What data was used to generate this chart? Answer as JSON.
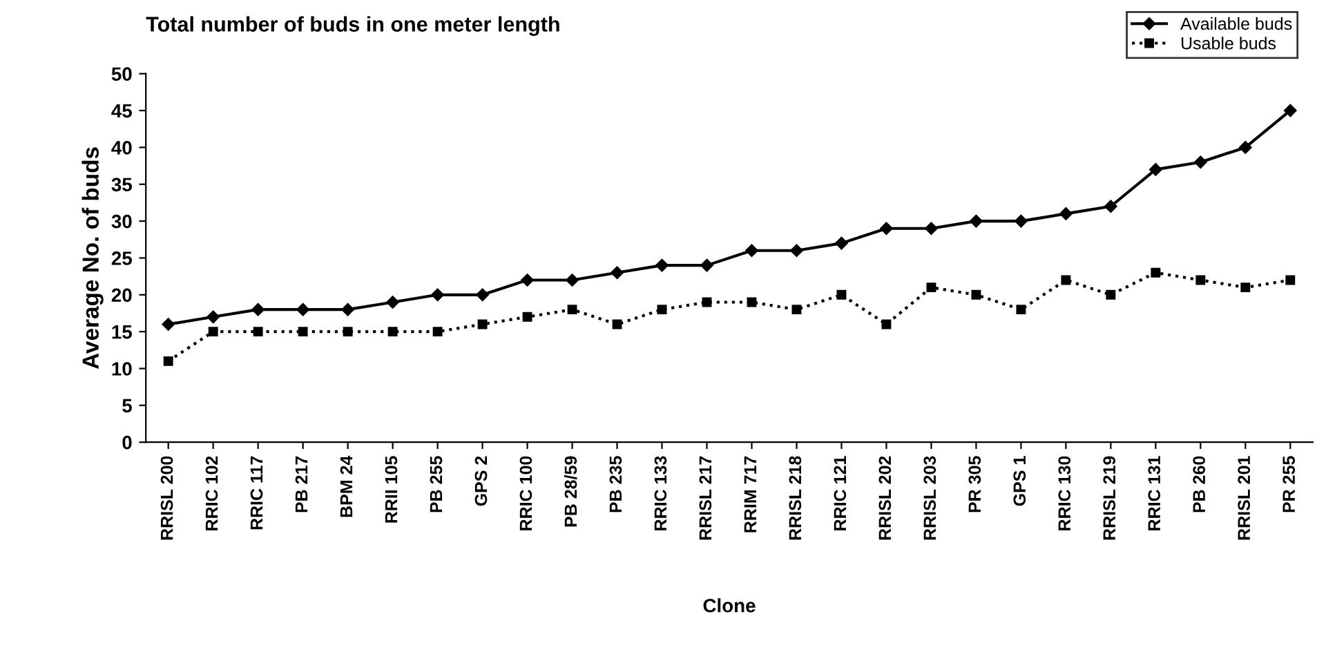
{
  "chart_data": {
    "type": "line",
    "title": "Total number of buds in one meter length",
    "xlabel": "Clone",
    "ylabel": "Average No. of buds",
    "categories": [
      "RRISL 200",
      "RRIC 102",
      "RRIC 117",
      "PB 217",
      "BPM 24",
      "RRII 105",
      "PB 255",
      "GPS 2",
      "RRIC 100",
      "PB 28/59",
      "PB 235",
      "RRIC 133",
      "RRISL 217",
      "RRIM 717",
      "RRISL 218",
      "RRIC 121",
      "RRISL 202",
      "RRISL 203",
      "PR 305",
      "GPS 1",
      "RRIC 130",
      "RRISL 219",
      "RRIC 131",
      "PB 260",
      "RRISL 201",
      "PR 255"
    ],
    "series": [
      {
        "name": "Available buds",
        "color": "#000000",
        "marker": "diamond",
        "line_style": "solid",
        "values": [
          16,
          17,
          18,
          18,
          18,
          19,
          20,
          20,
          22,
          22,
          23,
          24,
          24,
          26,
          26,
          27,
          29,
          29,
          30,
          30,
          31,
          32,
          37,
          38,
          40,
          45
        ]
      },
      {
        "name": "Usable buds",
        "color": "#000000",
        "marker": "square",
        "line_style": "dotted",
        "values": [
          11,
          15,
          15,
          15,
          15,
          15,
          15,
          16,
          17,
          18,
          16,
          18,
          19,
          19,
          18,
          20,
          16,
          21,
          20,
          18,
          22,
          20,
          23,
          22,
          21,
          22
        ]
      }
    ],
    "ylim": [
      0,
      50
    ],
    "yticks": [
      0,
      5,
      10,
      15,
      20,
      25,
      30,
      35,
      40,
      45,
      50
    ],
    "grid": false,
    "legend": "top right"
  }
}
